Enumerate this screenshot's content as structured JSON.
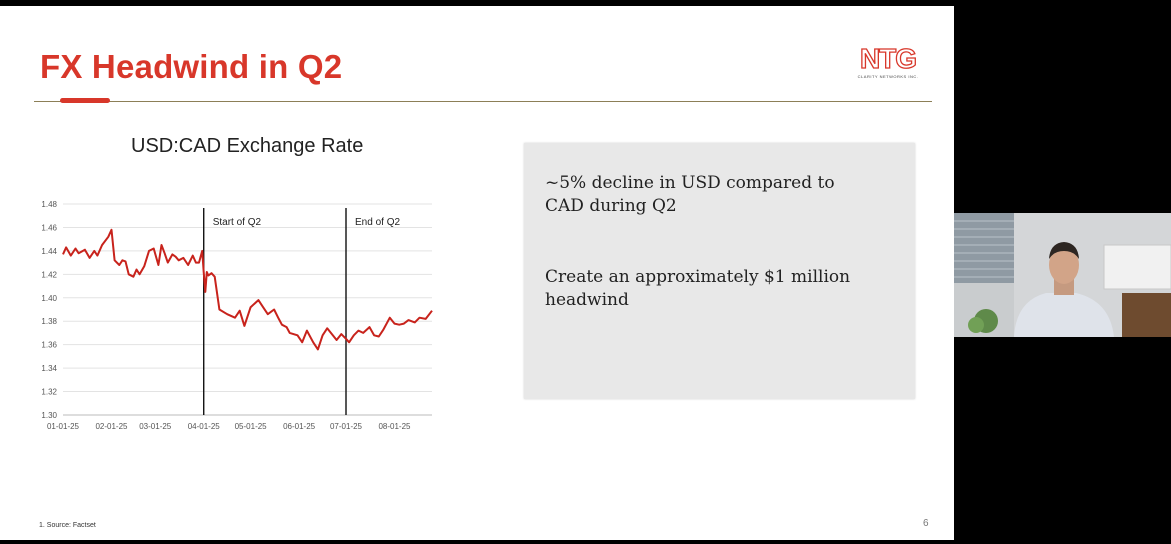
{
  "slide": {
    "title": "FX Headwind in Q2",
    "logo": {
      "mark": "NTG",
      "tagline": "CLARITY NETWORKS INC."
    },
    "chart_title": "USD:CAD Exchange Rate",
    "callout": {
      "point1": "~5% decline in USD compared to CAD during Q2",
      "point2": "Create an approximately $1 million headwind"
    },
    "source_note": "1. Source: Factset",
    "page_number": "6"
  },
  "webcam": {
    "participant": "presenter-video-feed"
  },
  "colors": {
    "accent": "#d8372a",
    "rule": "#8c7f57",
    "callout_bg": "#e8e8e8",
    "line": "#c8231c"
  },
  "chart_data": {
    "type": "line",
    "title": "USD:CAD Exchange Rate",
    "xlabel": "",
    "ylabel": "",
    "ylim": [
      1.3,
      1.48
    ],
    "y_ticks": [
      "1.48",
      "1.46",
      "1.44",
      "1.42",
      "1.40",
      "1.38",
      "1.36",
      "1.34",
      "1.32",
      "1.30"
    ],
    "x_ticks": [
      "01-01-25",
      "02-01-25",
      "03-01-25",
      "04-01-25",
      "05-01-25",
      "06-01-25",
      "07-01-25",
      "08-01-25"
    ],
    "x_range_days": [
      0,
      236
    ],
    "grid": true,
    "legend": "none",
    "annotations": [
      {
        "label": "Start of Q2",
        "x": "04-01-25"
      },
      {
        "label": "End of Q2",
        "x": "07-01-25"
      }
    ],
    "series": [
      {
        "x": [
          0,
          2,
          5,
          8,
          10,
          14,
          17,
          20,
          22,
          25,
          29,
          31,
          33,
          36,
          38,
          40,
          42,
          45,
          47,
          49,
          52,
          55,
          58,
          61,
          63,
          65,
          67,
          70,
          72,
          74,
          77,
          80,
          83,
          85,
          87,
          89,
          90,
          91,
          92,
          93,
          95,
          97,
          100,
          105,
          110,
          113,
          116,
          120,
          125,
          128,
          131,
          135,
          138,
          140,
          143,
          145,
          150,
          153,
          156,
          160,
          163,
          166,
          169,
          172,
          175,
          178,
          181,
          183,
          186,
          189,
          192,
          196,
          199,
          202,
          205,
          209,
          212,
          215,
          218,
          221,
          225,
          228,
          232,
          236
        ],
        "values": [
          1.437,
          1.443,
          1.436,
          1.442,
          1.438,
          1.441,
          1.434,
          1.44,
          1.436,
          1.445,
          1.452,
          1.458,
          1.432,
          1.428,
          1.432,
          1.431,
          1.42,
          1.418,
          1.424,
          1.42,
          1.427,
          1.44,
          1.442,
          1.428,
          1.445,
          1.438,
          1.43,
          1.437,
          1.435,
          1.432,
          1.434,
          1.428,
          1.436,
          1.43,
          1.43,
          1.44,
          1.422,
          1.405,
          1.422,
          1.419,
          1.421,
          1.418,
          1.39,
          1.386,
          1.383,
          1.389,
          1.376,
          1.392,
          1.398,
          1.392,
          1.386,
          1.39,
          1.382,
          1.377,
          1.375,
          1.37,
          1.368,
          1.362,
          1.372,
          1.362,
          1.356,
          1.368,
          1.374,
          1.369,
          1.364,
          1.369,
          1.365,
          1.362,
          1.368,
          1.372,
          1.37,
          1.375,
          1.368,
          1.367,
          1.373,
          1.383,
          1.378,
          1.377,
          1.378,
          1.381,
          1.379,
          1.383,
          1.382,
          1.389
        ]
      }
    ]
  }
}
